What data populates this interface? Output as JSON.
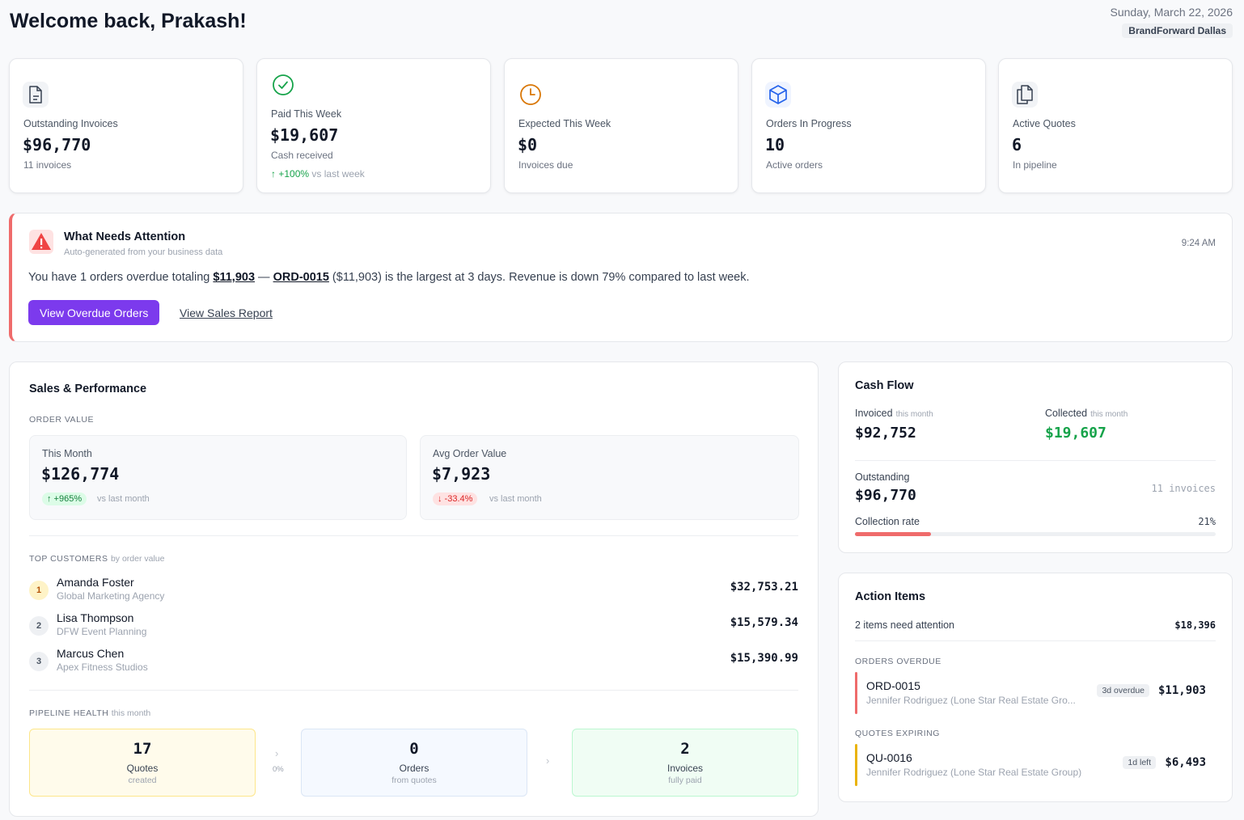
{
  "header": {
    "greeting": "Welcome back, Prakash!",
    "date": "Sunday, March 22, 2026",
    "company": "BrandForward Dallas"
  },
  "kpis": [
    {
      "label": "Outstanding Invoices",
      "value": "$96,770",
      "sub": "11 invoices",
      "icon": "document-icon"
    },
    {
      "label": "Paid This Week",
      "value": "$19,607",
      "sub": "Cash received",
      "trend_value": "+100%",
      "trend_text": "vs last week",
      "icon": "check-circle-icon"
    },
    {
      "label": "Expected This Week",
      "value": "$0",
      "sub": "Invoices due",
      "icon": "clock-icon"
    },
    {
      "label": "Orders In Progress",
      "value": "10",
      "sub": "Active orders",
      "icon": "box-icon"
    },
    {
      "label": "Active Quotes",
      "value": "6",
      "sub": "In pipeline",
      "icon": "copy-icon"
    }
  ],
  "attention": {
    "title": "What Needs Attention",
    "subtitle": "Auto-generated from your business data",
    "time": "9:24 AM",
    "msg_part1": "You have 1 orders overdue totaling ",
    "msg_amount": "$11,903",
    "msg_part2": " — ",
    "msg_order": "ORD-0015",
    "msg_part3": " ($11,903) is the largest at 3 days. Revenue is down 79% compared to last week.",
    "primary_button": "View Overdue Orders",
    "secondary_link": "View Sales Report"
  },
  "sales": {
    "title": "Sales & Performance",
    "order_value_heading": "Order Value",
    "this_month": {
      "label": "This Month",
      "value": "$126,774",
      "change": "↑ +965%",
      "vs": "vs last month"
    },
    "avg_order": {
      "label": "Avg Order Value",
      "value": "$7,923",
      "change": "↓ -33.4%",
      "vs": "vs last month"
    },
    "top_customers_heading": "Top Customers",
    "top_customers_qualifier": "by order value",
    "customers": [
      {
        "rank": "1",
        "name": "Amanda Foster",
        "org": "Global Marketing Agency",
        "amount": "$32,753.21"
      },
      {
        "rank": "2",
        "name": "Lisa Thompson",
        "org": "DFW Event Planning",
        "amount": "$15,579.34"
      },
      {
        "rank": "3",
        "name": "Marcus Chen",
        "org": "Apex Fitness Studios",
        "amount": "$15,390.99"
      }
    ],
    "pipeline_heading": "Pipeline Health",
    "pipeline_qualifier": "this month",
    "pipeline": [
      {
        "num": "17",
        "label": "Quotes",
        "sub": "created"
      },
      {
        "num": "0",
        "label": "Orders",
        "sub": "from quotes"
      },
      {
        "num": "2",
        "label": "Invoices",
        "sub": "fully paid"
      }
    ],
    "conversion_rate": "0%"
  },
  "cashflow": {
    "title": "Cash Flow",
    "invoiced_label": "Invoiced",
    "invoiced_qualifier": "this month",
    "invoiced_value": "$92,752",
    "collected_label": "Collected",
    "collected_qualifier": "this month",
    "collected_value": "$19,607",
    "outstanding_label": "Outstanding",
    "outstanding_value": "$96,770",
    "outstanding_count": "11 invoices",
    "collection_rate_label": "Collection rate",
    "collection_rate": "21%",
    "collection_rate_fraction": 0.21
  },
  "action_items": {
    "title": "Action Items",
    "summary": "2 items need attention",
    "total": "$18,396",
    "overdue_heading": "Orders Overdue",
    "overdue": {
      "id": "ORD-0015",
      "desc": "Jennifer Rodriguez (Lone Star Real Estate Gro...",
      "badge": "3d overdue",
      "amount": "$11,903"
    },
    "expiring_heading": "Quotes Expiring",
    "expiring": {
      "id": "QU-0016",
      "desc": "Jennifer Rodriguez (Lone Star Real Estate Group)",
      "badge": "1d left",
      "amount": "$6,493"
    }
  },
  "colors": {
    "accent": "#7c3aed",
    "positive": "#16a34a",
    "negative": "#dc2626",
    "alert": "#ef6b6b",
    "warning": "#eab308"
  }
}
